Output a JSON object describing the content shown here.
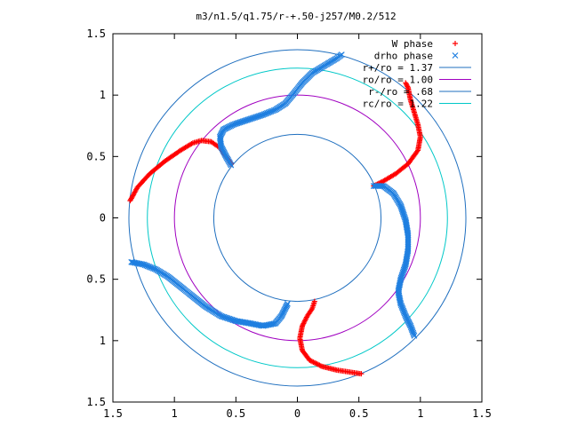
{
  "chart_data": {
    "type": "scatter",
    "title": "m3/n1.5/q1.75/r-+.50-j257/M0.2/512",
    "xlabel": "",
    "ylabel": "",
    "xlim": [
      -1.5,
      1.5
    ],
    "ylim": [
      -1.5,
      1.5
    ],
    "x_ticks": [
      -1.5,
      -1,
      -0.5,
      0,
      0.5,
      1,
      1.5
    ],
    "y_ticks": [
      -1.5,
      -1,
      -0.5,
      0,
      0.5,
      1,
      1.5
    ],
    "x_tick_labels": [
      "1.5",
      "1",
      "0.5",
      "0",
      "0.5",
      "1",
      "1.5"
    ],
    "y_tick_labels": [
      "1.5",
      "1",
      "0.5",
      "0",
      "0.5",
      "1",
      "1.5"
    ],
    "grid": false,
    "legend_position": "top-right",
    "circles": [
      {
        "name": "r+/ro = 1.37",
        "radius": 1.37,
        "color": "#1f6fbf"
      },
      {
        "name": "ro/ro = 1.00",
        "radius": 1.0,
        "color": "#a000c0"
      },
      {
        "name": "r-/ro = .68",
        "radius": 0.68,
        "color": "#1f6fbf"
      },
      {
        "name": "rc/ro = 1.22",
        "radius": 1.22,
        "color": "#00c8c8"
      }
    ],
    "series": [
      {
        "name": "W phase",
        "marker": "+",
        "color": "#ff0000",
        "arms": [
          [
            [
              -1.36,
              0.14
            ],
            [
              -1.3,
              0.25
            ],
            [
              -1.2,
              0.36
            ],
            [
              -1.08,
              0.46
            ],
            [
              -0.95,
              0.55
            ],
            [
              -0.85,
              0.61
            ],
            [
              -0.78,
              0.63
            ],
            [
              -0.7,
              0.62
            ],
            [
              -0.63,
              0.57
            ],
            [
              -0.58,
              0.5
            ],
            [
              -0.54,
              0.44
            ]
          ],
          [
            [
              0.14,
              -0.68
            ],
            [
              0.12,
              -0.74
            ],
            [
              0.08,
              -0.8
            ],
            [
              0.04,
              -0.88
            ],
            [
              0.02,
              -0.98
            ],
            [
              0.04,
              -1.08
            ],
            [
              0.1,
              -1.16
            ],
            [
              0.2,
              -1.21
            ],
            [
              0.32,
              -1.24
            ],
            [
              0.45,
              -1.26
            ],
            [
              0.52,
              -1.27
            ]
          ],
          [
            [
              0.62,
              0.26
            ],
            [
              0.7,
              0.3
            ],
            [
              0.8,
              0.36
            ],
            [
              0.9,
              0.44
            ],
            [
              0.98,
              0.55
            ],
            [
              1.0,
              0.66
            ],
            [
              0.98,
              0.76
            ],
            [
              0.95,
              0.86
            ],
            [
              0.92,
              0.96
            ],
            [
              0.9,
              1.06
            ],
            [
              0.88,
              1.1
            ]
          ]
        ]
      },
      {
        "name": "drho phase",
        "marker": "x",
        "color": "#1f7fe0",
        "arms": [
          [
            [
              -0.54,
              0.43
            ],
            [
              -0.58,
              0.5
            ],
            [
              -0.62,
              0.58
            ],
            [
              -0.63,
              0.66
            ],
            [
              -0.6,
              0.72
            ],
            [
              -0.52,
              0.76
            ],
            [
              -0.4,
              0.8
            ],
            [
              -0.28,
              0.84
            ],
            [
              -0.18,
              0.88
            ],
            [
              -0.1,
              0.93
            ],
            [
              -0.04,
              1.0
            ],
            [
              0.04,
              1.1
            ],
            [
              0.12,
              1.18
            ],
            [
              0.22,
              1.24
            ],
            [
              0.32,
              1.3
            ],
            [
              0.36,
              1.33
            ]
          ],
          [
            [
              -1.35,
              -0.36
            ],
            [
              -1.25,
              -0.38
            ],
            [
              -1.15,
              -0.42
            ],
            [
              -1.05,
              -0.48
            ],
            [
              -0.95,
              -0.56
            ],
            [
              -0.85,
              -0.64
            ],
            [
              -0.75,
              -0.72
            ],
            [
              -0.62,
              -0.8
            ],
            [
              -0.5,
              -0.84
            ],
            [
              -0.38,
              -0.86
            ],
            [
              -0.28,
              -0.88
            ],
            [
              -0.18,
              -0.86
            ],
            [
              -0.13,
              -0.8
            ],
            [
              -0.1,
              -0.74
            ],
            [
              -0.08,
              -0.7
            ]
          ],
          [
            [
              0.62,
              0.26
            ],
            [
              0.7,
              0.26
            ],
            [
              0.78,
              0.2
            ],
            [
              0.84,
              0.1
            ],
            [
              0.88,
              -0.02
            ],
            [
              0.9,
              -0.14
            ],
            [
              0.9,
              -0.26
            ],
            [
              0.88,
              -0.38
            ],
            [
              0.84,
              -0.5
            ],
            [
              0.82,
              -0.6
            ],
            [
              0.84,
              -0.7
            ],
            [
              0.88,
              -0.8
            ],
            [
              0.92,
              -0.88
            ],
            [
              0.95,
              -0.96
            ]
          ]
        ]
      }
    ]
  }
}
